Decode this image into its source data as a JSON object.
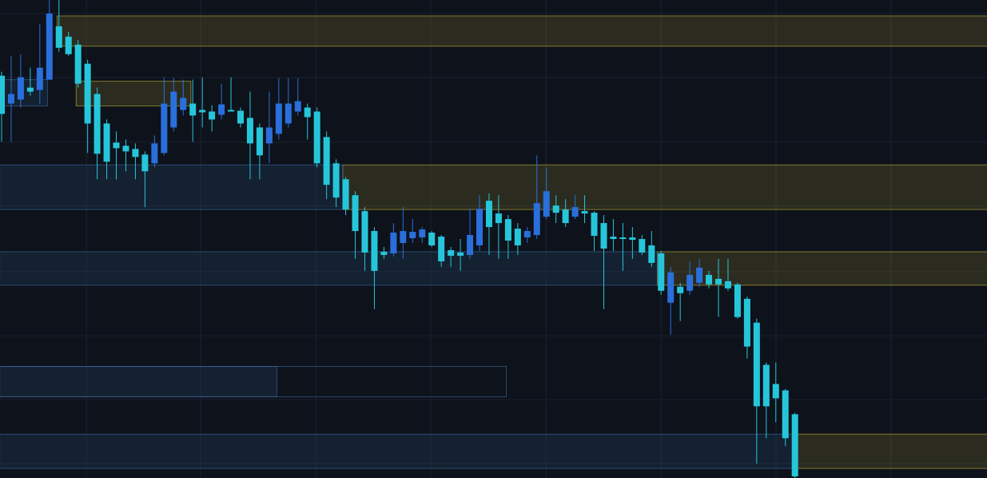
{
  "chart_data": {
    "type": "candlestick",
    "ylim": [
      0,
      600
    ],
    "up_color": "#2a6fdb",
    "down_color": "#26c6da",
    "open": [
      505,
      470,
      475,
      490,
      487,
      500,
      567,
      554,
      544,
      520,
      482,
      445,
      421,
      417,
      413,
      406,
      395,
      408,
      440,
      462,
      470,
      462,
      460,
      456,
      462,
      461,
      452,
      440,
      420,
      432,
      445,
      460,
      465,
      460,
      428,
      395,
      375,
      355,
      335,
      310,
      284,
      282,
      295,
      301,
      302,
      308,
      303,
      286,
      283,
      280,
      292,
      348,
      332,
      325,
      313,
      302,
      305,
      328,
      342,
      337,
      328,
      335,
      333,
      320,
      303,
      302,
      302,
      300,
      292,
      282,
      220,
      240,
      235,
      245,
      255,
      250,
      247,
      243,
      225,
      195,
      142,
      118,
      110,
      80
    ],
    "high": [
      510,
      530,
      532,
      515,
      570,
      600,
      600,
      560,
      550,
      525,
      490,
      450,
      435,
      425,
      420,
      410,
      430,
      503,
      502,
      500,
      500,
      503,
      468,
      495,
      503,
      465,
      485,
      445,
      485,
      502,
      502,
      502,
      470,
      465,
      435,
      400,
      378,
      360,
      340,
      315,
      290,
      320,
      340,
      325,
      315,
      310,
      305,
      290,
      300,
      338,
      355,
      357,
      355,
      330,
      320,
      315,
      405,
      390,
      355,
      350,
      355,
      355,
      335,
      330,
      325,
      320,
      315,
      305,
      310,
      285,
      265,
      245,
      272,
      275,
      260,
      275,
      275,
      245,
      228,
      200,
      145,
      145,
      112,
      82
    ],
    "low": [
      422,
      422,
      465,
      480,
      470,
      500,
      535,
      530,
      490,
      408,
      375,
      375,
      375,
      385,
      375,
      340,
      390,
      405,
      435,
      455,
      422,
      440,
      435,
      450,
      460,
      440,
      375,
      375,
      395,
      425,
      440,
      455,
      425,
      390,
      350,
      340,
      330,
      275,
      260,
      212,
      275,
      278,
      275,
      295,
      295,
      290,
      265,
      265,
      260,
      275,
      285,
      280,
      275,
      275,
      280,
      295,
      300,
      325,
      320,
      315,
      325,
      320,
      285,
      212,
      285,
      260,
      275,
      280,
      265,
      230,
      180,
      197,
      230,
      240,
      238,
      202,
      235,
      200,
      150,
      18,
      50,
      70,
      40,
      0
    ],
    "close": [
      457,
      482,
      503,
      485,
      515,
      583,
      540,
      532,
      495,
      445,
      407,
      397,
      414,
      410,
      403,
      385,
      420,
      470,
      485,
      477,
      455,
      459,
      450,
      469,
      460,
      445,
      420,
      405,
      440,
      470,
      470,
      473,
      453,
      395,
      368,
      352,
      337,
      310,
      283,
      260,
      280,
      308,
      310,
      309,
      312,
      292,
      272,
      279,
      279,
      305,
      338,
      315,
      320,
      298,
      292,
      310,
      345,
      360,
      333,
      320,
      340,
      332,
      304,
      288,
      300,
      300,
      299,
      283,
      270,
      235,
      258,
      232,
      255,
      264,
      243,
      243,
      238,
      202,
      165,
      90,
      90,
      100,
      50,
      2
    ],
    "zones": [
      {
        "color": "#c9b53a",
        "low": 542,
        "high": 580,
        "from": 5.8,
        "extend": true,
        "filled": true
      },
      {
        "color": "#c9b53a",
        "low": 467,
        "high": 498,
        "from": 7.8,
        "to": 19.8,
        "filled": true
      },
      {
        "color": "#c9b53a",
        "low": 337,
        "high": 393,
        "from": 35.7,
        "extend": true,
        "filled": true
      },
      {
        "color": "#c9b53a",
        "low": 242,
        "high": 284,
        "from": 68.6,
        "extend": true,
        "filled": true
      },
      {
        "color": "#c9b53a",
        "low": 12,
        "high": 55,
        "from": 83.2,
        "extend": true,
        "filled": true
      },
      {
        "color": "#3a6ea5",
        "low": 467,
        "high": 500,
        "from": -0.2,
        "to": 4.8,
        "filled": true
      },
      {
        "color": "#3a6ea5",
        "low": 337,
        "high": 393,
        "from": -0.2,
        "to": 35.7,
        "filled": true
      },
      {
        "color": "#3a6ea5",
        "low": 242,
        "high": 284,
        "from": -0.2,
        "to": 68.6,
        "filled": true
      },
      {
        "color": "#3a6ea5",
        "low": 102,
        "high": 140,
        "from": -0.2,
        "to": 28.8,
        "filled": true
      },
      {
        "color": "#3a6ea5",
        "low": 102,
        "high": 140,
        "from": -0.2,
        "to": 52.8,
        "filled": false
      },
      {
        "color": "#3a6ea5",
        "low": 12,
        "high": 55,
        "from": -0.2,
        "to": 83.2,
        "filled": true
      }
    ]
  }
}
